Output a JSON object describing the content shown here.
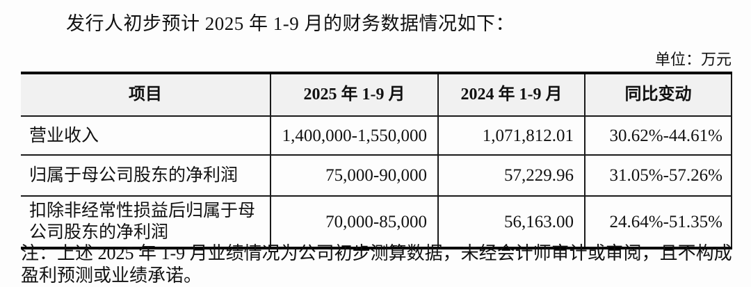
{
  "page": {
    "title": "发行人初步预计 2025 年 1-9 月的财务数据情况如下：",
    "unit_label": "单位：万元",
    "note_line1": "注：上述 2025 年 1-9 月业绩情况为公司初步测算数据，未经会计师审计或审阅，且不构成",
    "note_line2": "盈利预测或业绩承诺。"
  },
  "table": {
    "headers": [
      "项目",
      "2025 年 1-9 月",
      "2024 年 1-9 月",
      "同比变动"
    ],
    "rows": [
      {
        "item": "营业收入",
        "v2025": "1,400,000-1,550,000",
        "v2024": "1,071,812.01",
        "yoy": "30.62%-44.61%"
      },
      {
        "item": "归属于母公司股东的净利润",
        "v2025": "75,000-90,000",
        "v2024": "57,229.96",
        "yoy": "31.05%-57.26%"
      },
      {
        "item": "扣除非经常性损益后归属于母公司股东的净利润",
        "v2025": "70,000-85,000",
        "v2024": "56,163.00",
        "yoy": "24.64%-51.35%"
      }
    ],
    "colors": {
      "header_bg": "#f1f1f1",
      "border": "#000000",
      "text": "#111111",
      "page_bg": "#fdfdfd"
    }
  }
}
